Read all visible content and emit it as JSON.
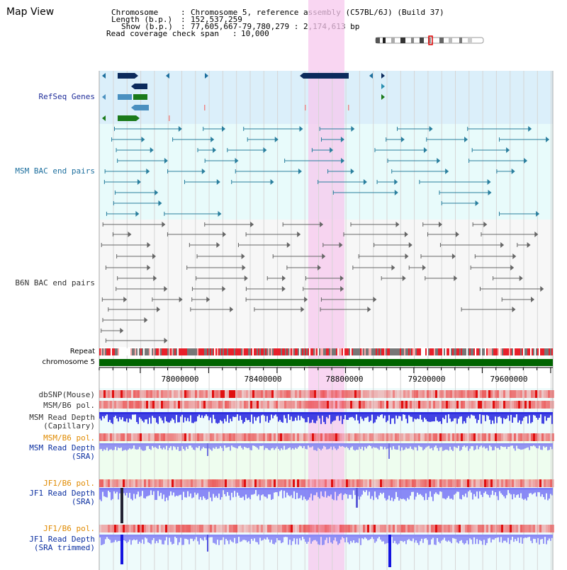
{
  "title": "Map View",
  "info": {
    "chromosome_label": "Chromosome",
    "chromosome_value": "Chromosome 5, reference assembly (C57BL/6J) (Build 37)",
    "length_label": "Length (b.p.)",
    "length_value": "152,537,259",
    "show_label": "Show (b.p.)",
    "show_value": "77,605,667-79,780,279 : 2,174,613 bp",
    "coverage_label": "Read coverage check span",
    "coverage_value": "10,000"
  },
  "tracks": {
    "refseq": "RefSeq Genes",
    "msm_bac": "MSM BAC end pairs",
    "b6n_bac": "B6N BAC end pairs",
    "repeat": "Repeat",
    "chromosome": "chromosome 5",
    "dbsnp": "dbSNP(Mouse)",
    "msm_b6_pol_1": "MSM/B6 pol.",
    "msm_depth_cap_1": "MSM Read Depth",
    "msm_depth_cap_2": "(Capillary)",
    "msm_b6_pol_2": "MSM/B6 pol.",
    "msm_depth_sra_1": "MSM Read Depth",
    "msm_depth_sra_2": "(SRA)",
    "jf1_b6_pol_1": "JF1/B6 pol.",
    "jf1_depth_sra_1": "JF1 Read Depth",
    "jf1_depth_sra_2": "(SRA)",
    "jf1_b6_pol_2": "JF1/B6 pol.",
    "jf1_depth_trim_1": "JF1 Read Depth",
    "jf1_depth_trim_2": "(SRA trimmed)"
  },
  "axis_ticks": [
    "78000000",
    "78400000",
    "78800000",
    "79200000",
    "79600000"
  ],
  "colors": {
    "refseq_bg": "#dbeffa",
    "msm_bg": "#e8fbfb",
    "b6n_bg": "#f7f7f7",
    "highlight": "#f7c8ee",
    "chromosome": "#006400",
    "depth_blue": "#3a3ae0",
    "depth_light": "#8a8aff",
    "pol_red": "#f07070",
    "label_blue": "#1f2d9a",
    "label_orange": "#e08a00"
  }
}
